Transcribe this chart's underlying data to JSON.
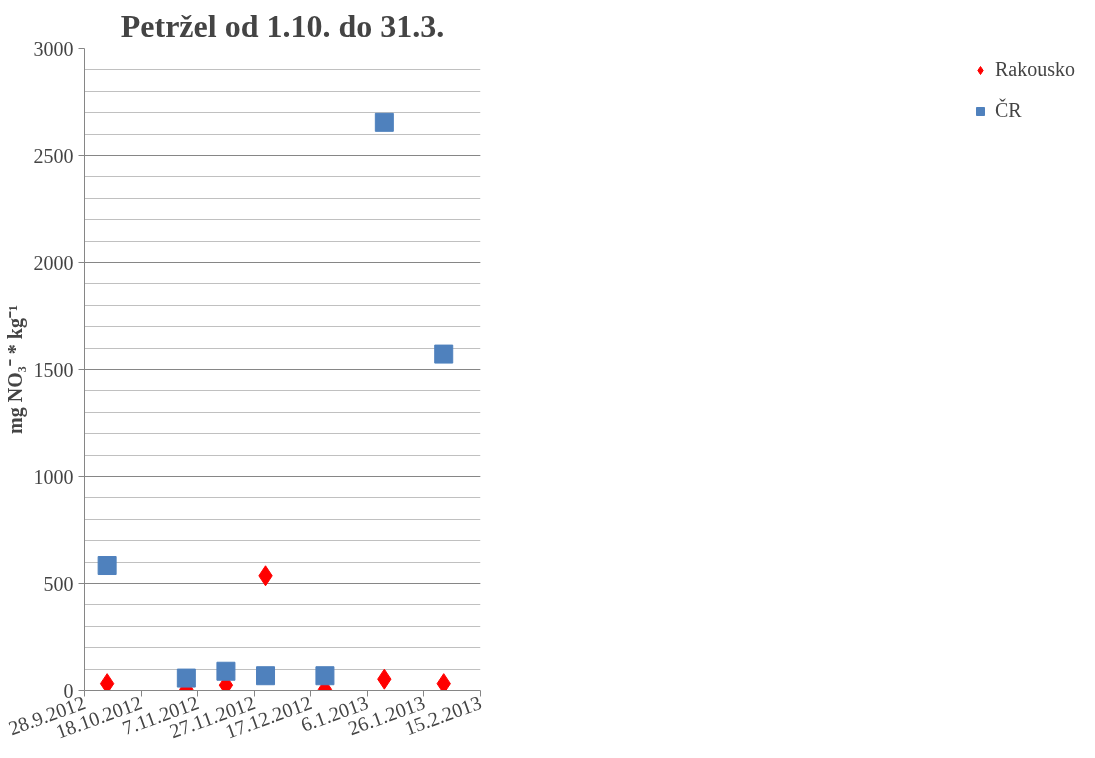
{
  "chart_data": {
    "type": "scatter",
    "title": "Petržel od 1.10. do 31.3.",
    "ylabel": "mg NO₃⁻ * kg⁻¹",
    "x": [
      "2012-10-06",
      "2012-11-03",
      "2012-11-17",
      "2012-12-01",
      "2012-12-22",
      "2013-01-12",
      "2013-02-02"
    ],
    "series": [
      {
        "name": "Rakousko",
        "color": "#ff0000",
        "marker": "diamond",
        "values": [
          32,
          5,
          25,
          536,
          5,
          53,
          32
        ]
      },
      {
        "name": "ČR",
        "color": "#4f81bd",
        "marker": "square",
        "values": [
          584,
          58,
          90,
          69,
          69,
          2655,
          1572
        ]
      }
    ],
    "xlim": [
      "2012-09-28",
      "2013-02-15"
    ],
    "xticks": [
      {
        "value": "2012-09-28",
        "label": "28.9.2012"
      },
      {
        "value": "2012-10-18",
        "label": "18.10.2012"
      },
      {
        "value": "2012-11-07",
        "label": "7.11.2012"
      },
      {
        "value": "2012-11-27",
        "label": "27.11.2012"
      },
      {
        "value": "2012-12-17",
        "label": "17.12.2012"
      },
      {
        "value": "2013-01-06",
        "label": "6.1.2013"
      },
      {
        "value": "2013-01-26",
        "label": "26.1.2013"
      },
      {
        "value": "2013-02-15",
        "label": "15.2.2013"
      }
    ],
    "ylim": [
      0,
      3000
    ],
    "yticks": [
      0,
      500,
      1000,
      1500,
      2000,
      2500,
      3000
    ],
    "grid": "y",
    "legend": "right"
  }
}
